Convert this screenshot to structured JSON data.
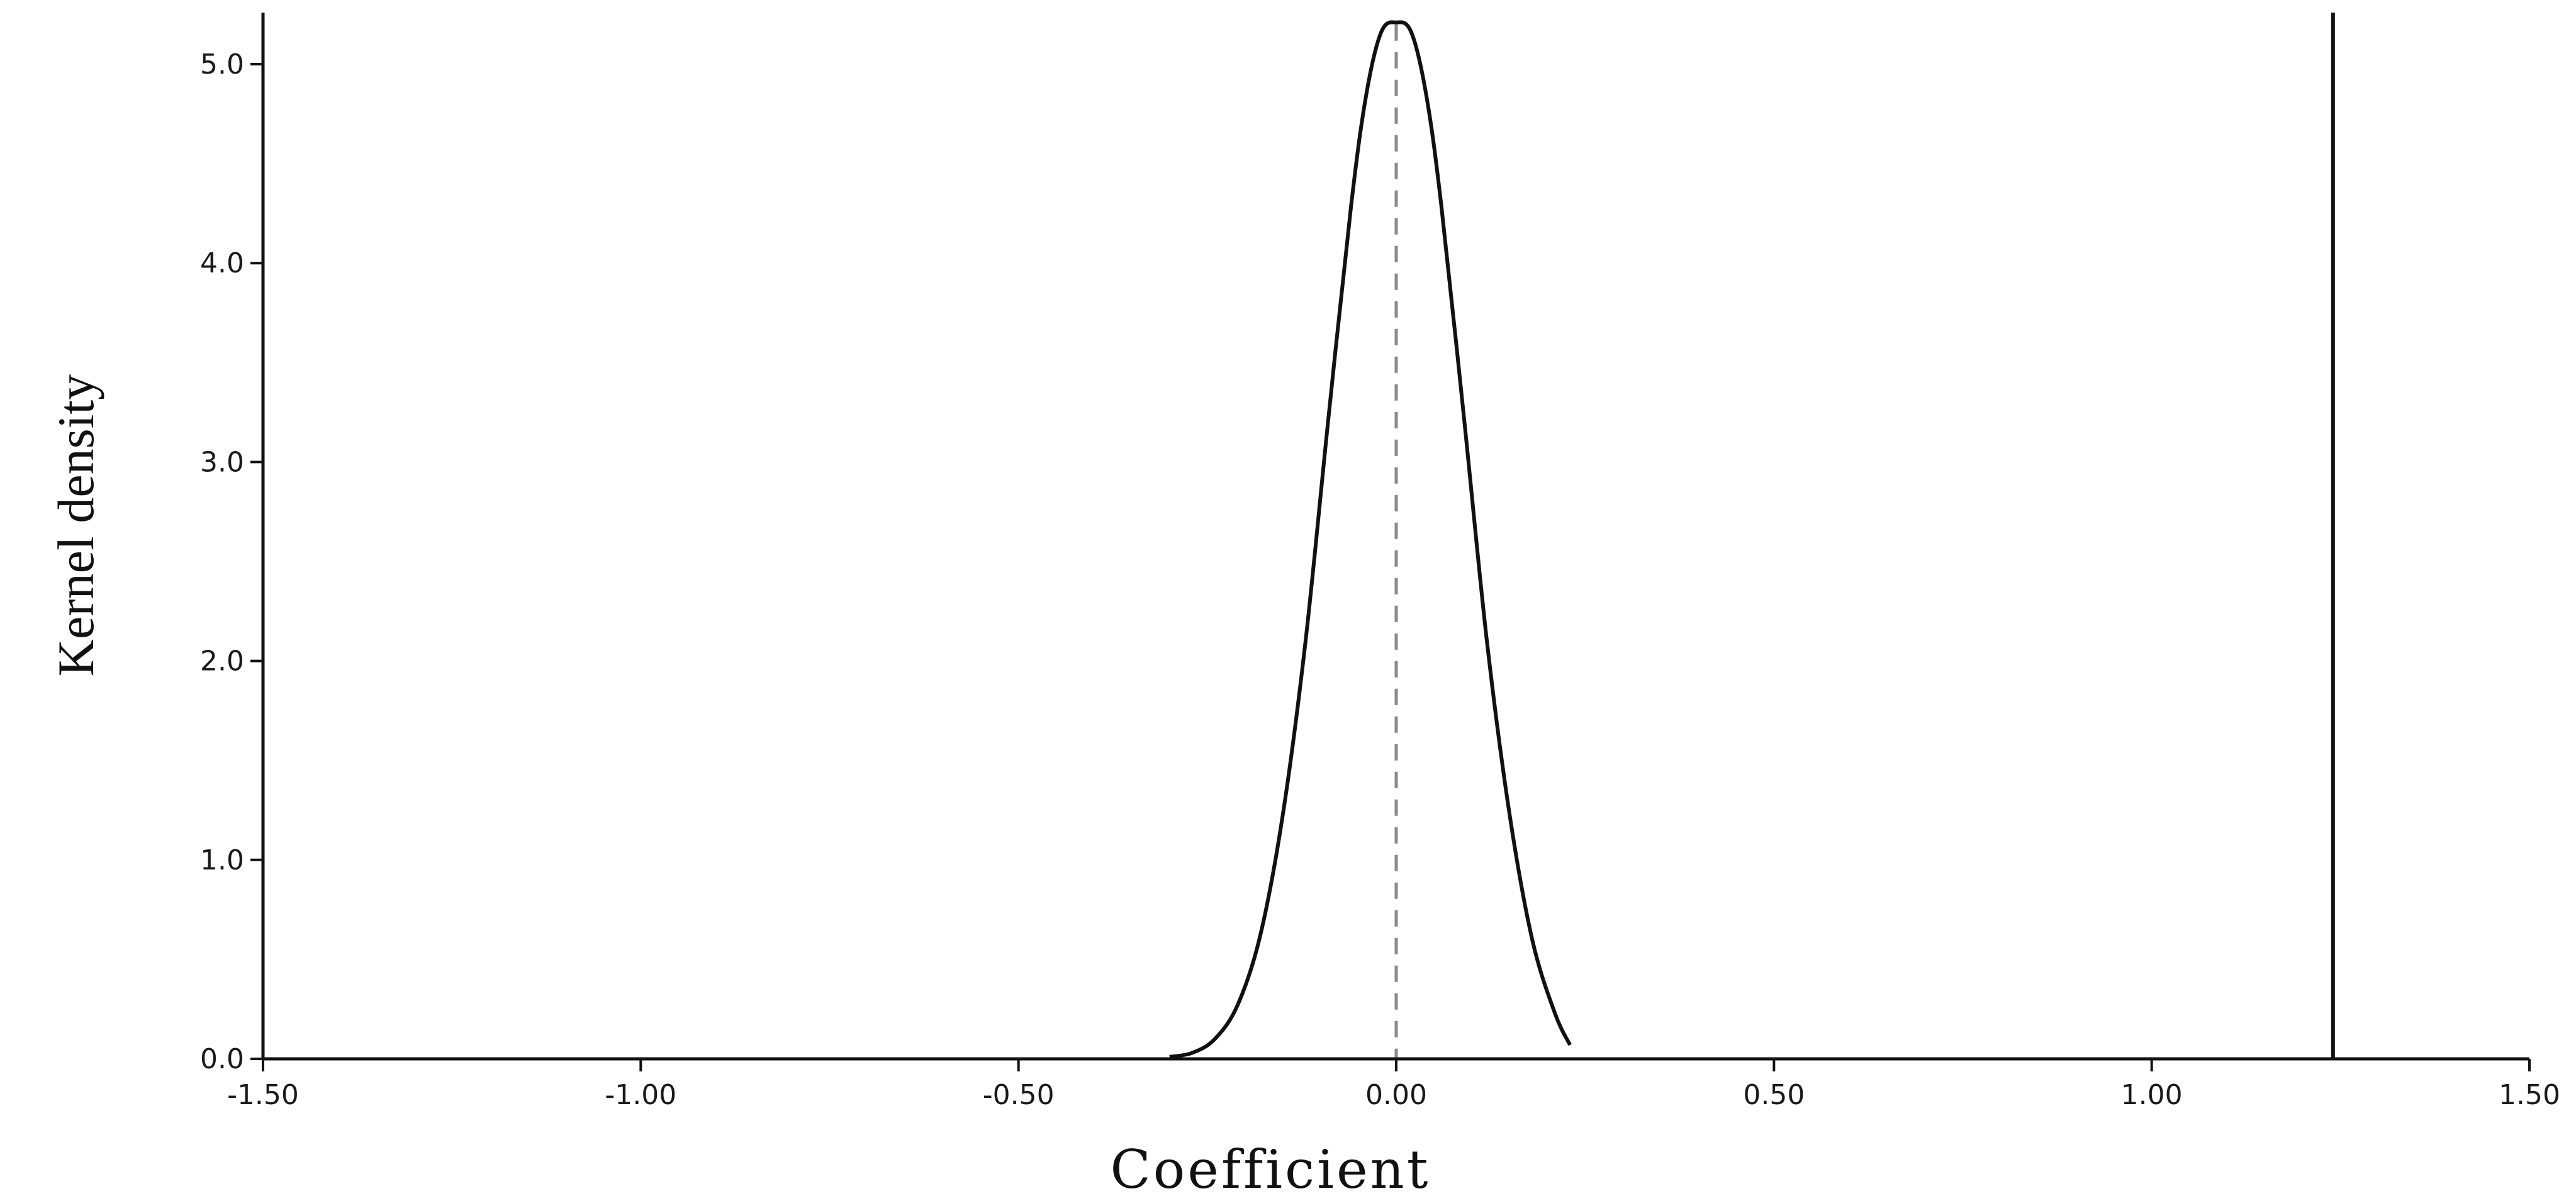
{
  "chart_data": {
    "type": "line",
    "title": "",
    "xlabel": "Coefficient",
    "ylabel": "Kernel density",
    "xlim": [
      -1.5,
      1.5
    ],
    "ylim": [
      0.0,
      5.2
    ],
    "x_ticks": [
      -1.5,
      -1.0,
      -0.5,
      0.0,
      0.5,
      1.0,
      1.5
    ],
    "x_tick_labels": [
      "-1.50",
      "-1.00",
      "-0.50",
      "0.00",
      "0.50",
      "1.00",
      "1.50"
    ],
    "y_ticks": [
      0.0,
      1.0,
      2.0,
      3.0,
      4.0,
      5.0
    ],
    "y_tick_labels": [
      "0.0",
      "1.0",
      "2.0",
      "3.0",
      "4.0",
      "5.0"
    ],
    "grid": false,
    "series": [
      {
        "x": [
          -0.3,
          -0.27,
          -0.24,
          -0.21,
          -0.18,
          -0.15,
          -0.12,
          -0.09,
          -0.06,
          -0.04,
          -0.02,
          0.0,
          0.02,
          0.04,
          0.06,
          0.09,
          0.12,
          0.15,
          0.18,
          0.21,
          0.23
        ],
        "y": [
          0.01,
          0.03,
          0.1,
          0.27,
          0.62,
          1.23,
          2.1,
          3.21,
          4.28,
          4.84,
          5.16,
          5.21,
          5.16,
          4.84,
          4.28,
          3.21,
          2.1,
          1.23,
          0.6,
          0.23,
          0.07
        ]
      }
    ],
    "reference_lines": [
      {
        "x": 0.0,
        "style": "dashed",
        "color": "#8a8a8a"
      },
      {
        "x": 1.24,
        "style": "solid",
        "color": "#111111"
      }
    ]
  }
}
